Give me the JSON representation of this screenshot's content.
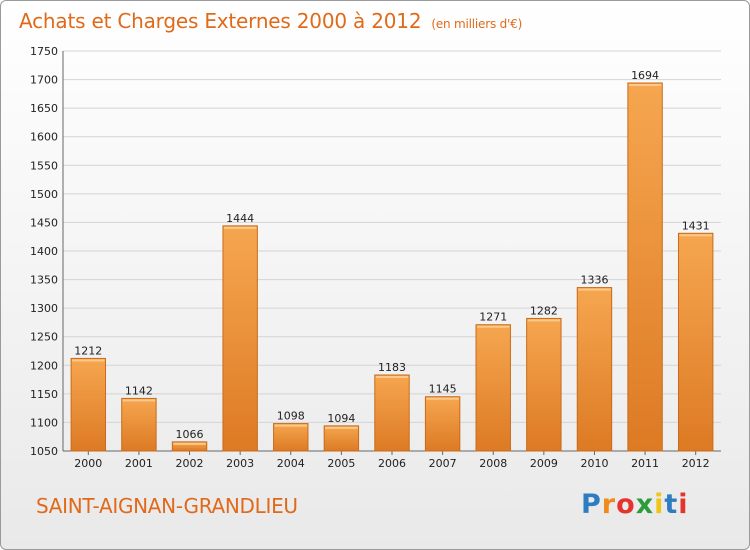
{
  "header": {
    "title": "Achats et Charges Externes 2000 à 2012",
    "unit": "(en milliers d'€)"
  },
  "footer": {
    "city": "SAINT-AIGNAN-GRANDLIEU",
    "brand_letters": [
      "P",
      "r",
      "o",
      "x",
      "i",
      "t",
      "i"
    ],
    "brand_colors": [
      "#2f7dc1",
      "#f08a1c",
      "#e3342f",
      "#2e9b3c",
      "#f0c419",
      "#2f7dc1",
      "#e3342f"
    ]
  },
  "colors": {
    "bar_light": "#f6a650",
    "bar_dark": "#dd7a24",
    "bar_edge": "#c96b1a",
    "accent": "#e06a1a"
  },
  "chart_data": {
    "type": "bar",
    "categories": [
      "2000",
      "2001",
      "2002",
      "2003",
      "2004",
      "2005",
      "2006",
      "2007",
      "2008",
      "2009",
      "2010",
      "2011",
      "2012"
    ],
    "values": [
      1212,
      1142,
      1066,
      1444,
      1098,
      1094,
      1183,
      1145,
      1271,
      1282,
      1336,
      1694,
      1431
    ],
    "title": "Achats et Charges Externes 2000 à 2012",
    "xlabel": "",
    "ylabel": "",
    "ylim": [
      1050,
      1750
    ],
    "yticks": [
      1050,
      1100,
      1150,
      1200,
      1250,
      1300,
      1350,
      1400,
      1450,
      1500,
      1550,
      1600,
      1650,
      1700,
      1750
    ],
    "grid": true,
    "data_labels": true
  }
}
